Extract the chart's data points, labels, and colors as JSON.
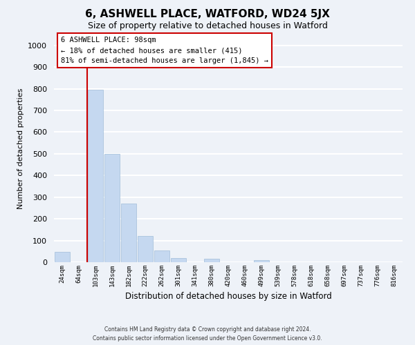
{
  "title": "6, ASHWELL PLACE, WATFORD, WD24 5JX",
  "subtitle": "Size of property relative to detached houses in Watford",
  "xlabel": "Distribution of detached houses by size in Watford",
  "ylabel": "Number of detached properties",
  "bin_labels": [
    "24sqm",
    "64sqm",
    "103sqm",
    "143sqm",
    "182sqm",
    "222sqm",
    "262sqm",
    "301sqm",
    "341sqm",
    "380sqm",
    "420sqm",
    "460sqm",
    "499sqm",
    "539sqm",
    "578sqm",
    "618sqm",
    "658sqm",
    "697sqm",
    "737sqm",
    "776sqm",
    "816sqm"
  ],
  "bar_heights": [
    47,
    0,
    795,
    500,
    270,
    120,
    55,
    20,
    0,
    15,
    0,
    0,
    8,
    0,
    0,
    0,
    0,
    0,
    0,
    0,
    0
  ],
  "bar_color": "#c5d8f0",
  "bar_edge_color": "#a0bcd8",
  "ylim": [
    0,
    1050
  ],
  "yticks": [
    0,
    100,
    200,
    300,
    400,
    500,
    600,
    700,
    800,
    900,
    1000
  ],
  "red_line_index": 2,
  "annotation_text_line1": "6 ASHWELL PLACE: 98sqm",
  "annotation_text_line2": "← 18% of detached houses are smaller (415)",
  "annotation_text_line3": "81% of semi-detached houses are larger (1,845) →",
  "footer_line1": "Contains HM Land Registry data © Crown copyright and database right 2024.",
  "footer_line2": "Contains public sector information licensed under the Open Government Licence v3.0.",
  "bg_color": "#eef2f8",
  "grid_color": "#ffffff",
  "annotation_box_color": "#ffffff",
  "annotation_box_edge": "#cc0000",
  "red_line_color": "#cc0000",
  "title_fontsize": 11,
  "subtitle_fontsize": 9
}
